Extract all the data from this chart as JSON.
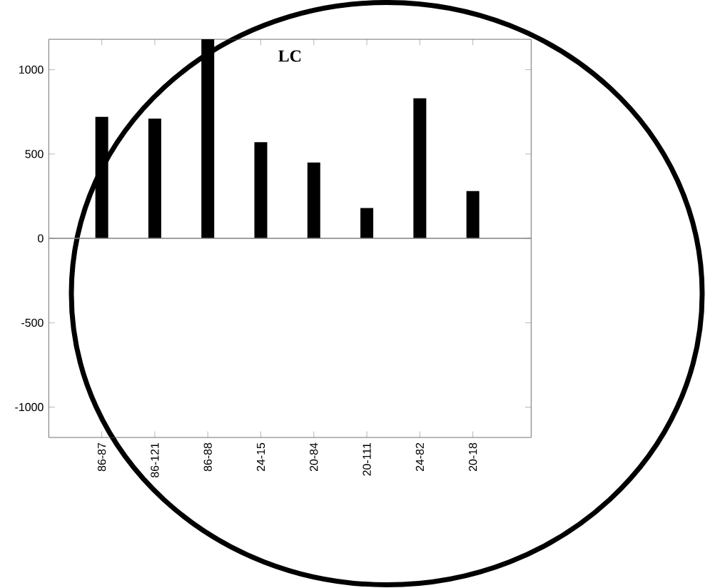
{
  "chart_data": {
    "type": "bar",
    "title": "LC",
    "categories": [
      "86-87",
      "86-121",
      "86-88",
      "24-15",
      "20-84",
      "20-111",
      "24-82",
      "20-18"
    ],
    "values": [
      720,
      710,
      1180,
      570,
      450,
      180,
      830,
      280
    ],
    "color": "#000000",
    "ylim": [
      -1180,
      1180
    ],
    "yticks": [
      -1000,
      -500,
      0,
      500,
      1000
    ],
    "ref_lines": [
      {
        "axis": "y",
        "value": 0,
        "color": "#808080"
      }
    ],
    "grid": false
  }
}
